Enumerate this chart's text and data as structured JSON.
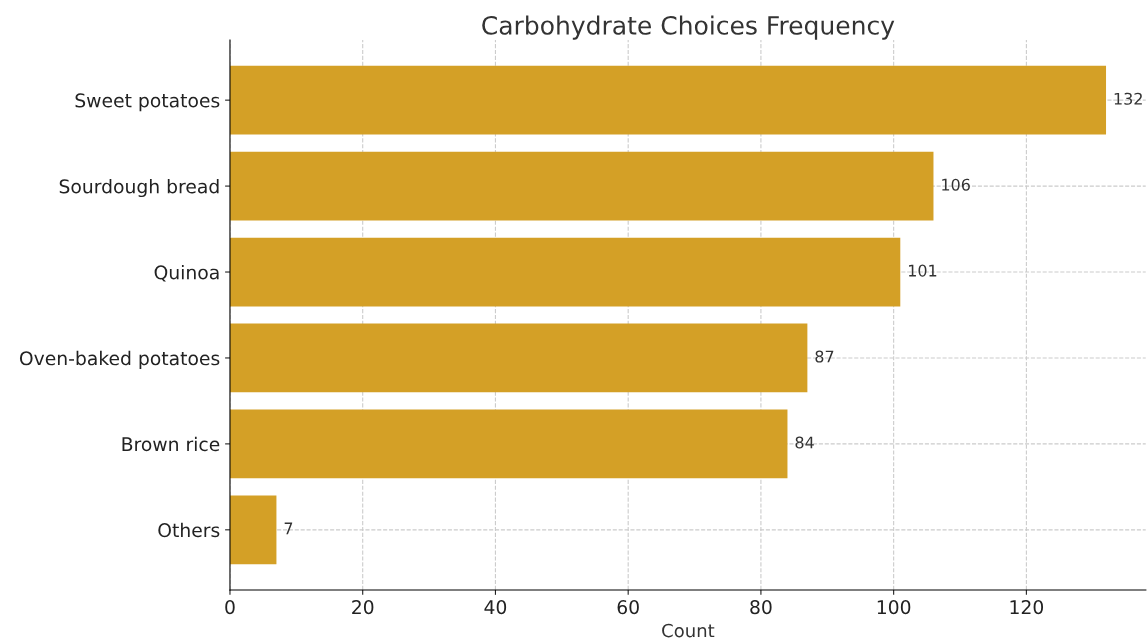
{
  "chart_data": {
    "type": "bar",
    "orientation": "horizontal",
    "title": "Carbohydrate Choices Frequency",
    "xlabel": "Count",
    "categories": [
      "Sweet potatoes",
      "Sourdough bread",
      "Quinoa",
      "Oven-baked potatoes",
      "Brown rice",
      "Others"
    ],
    "values": [
      132,
      106,
      101,
      87,
      84,
      7
    ],
    "color": "#d4a026",
    "xlim": [
      0,
      138
    ],
    "xticks": [
      0,
      20,
      40,
      60,
      80,
      100,
      120
    ],
    "grid": true,
    "data_labels": true
  }
}
